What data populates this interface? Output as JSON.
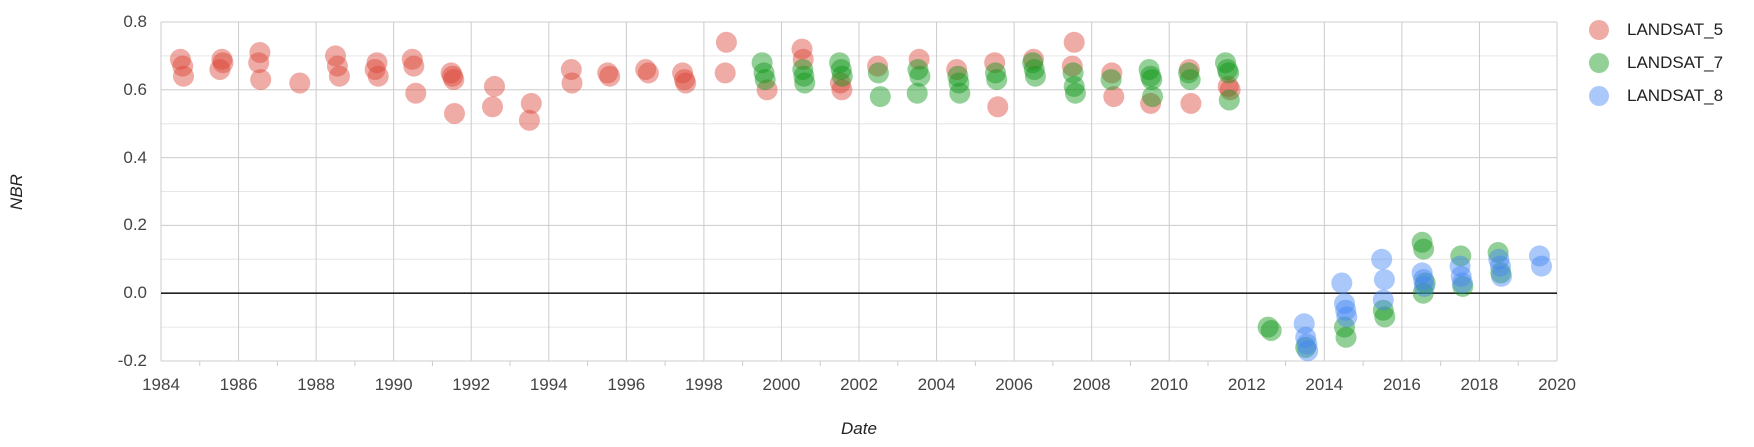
{
  "chart": {
    "background": "#ffffff",
    "grid": {
      "major_color": "#cccccc",
      "minor_color": "#e6e6e6",
      "baseline_color": "#212121",
      "tick_label_color": "#444444",
      "axis_title_color": "#222222"
    },
    "y_axis": {
      "title": "NBR",
      "tick_labels": [
        "0.8",
        "0.6",
        "0.4",
        "0.2",
        "0.0",
        "-0.2"
      ],
      "tick_values": [
        0.8,
        0.6,
        0.4,
        0.2,
        0.0,
        -0.2
      ],
      "minor_gridlines": [
        0.7,
        0.5,
        0.3,
        0.1,
        -0.1
      ]
    },
    "x_axis": {
      "title": "Date",
      "tick_labels": [
        "1984",
        "1986",
        "1988",
        "1990",
        "1992",
        "1994",
        "1996",
        "1998",
        "2000",
        "2002",
        "2004",
        "2006",
        "2008",
        "2010",
        "2012",
        "2014",
        "2016",
        "2018",
        "2020"
      ],
      "tick_values": [
        1984,
        1986,
        1988,
        1990,
        1992,
        1994,
        1996,
        1998,
        2000,
        2002,
        2004,
        2006,
        2008,
        2010,
        2012,
        2014,
        2016,
        2018,
        2020
      ],
      "minor_ticks": [
        1985,
        1987,
        1989,
        1991,
        1993,
        1995,
        1997,
        1999,
        2001,
        2003,
        2005,
        2007,
        2009,
        2011,
        2013,
        2015,
        2017,
        2019
      ]
    }
  },
  "chart_data": {
    "type": "scatter",
    "title": "",
    "xlabel": "Date",
    "ylabel": "NBR",
    "xlim": [
      1984,
      2020
    ],
    "ylim": [
      -0.2,
      0.8
    ],
    "baseline": 0,
    "grid": "on",
    "legend_position": "top-right-outside",
    "point_opacity": 0.45,
    "series": [
      {
        "name": "LANDSAT_5",
        "color": "#db4437",
        "points": [
          [
            1984.5,
            0.69
          ],
          [
            1984.56,
            0.67
          ],
          [
            1984.58,
            0.64
          ],
          [
            1985.52,
            0.66
          ],
          [
            1985.57,
            0.69
          ],
          [
            1985.6,
            0.68
          ],
          [
            1986.52,
            0.68
          ],
          [
            1986.55,
            0.71
          ],
          [
            1986.57,
            0.63
          ],
          [
            1987.58,
            0.62
          ],
          [
            1988.5,
            0.7
          ],
          [
            1988.55,
            0.67
          ],
          [
            1988.6,
            0.64
          ],
          [
            1989.52,
            0.66
          ],
          [
            1989.57,
            0.68
          ],
          [
            1989.6,
            0.64
          ],
          [
            1990.48,
            0.69
          ],
          [
            1990.52,
            0.67
          ],
          [
            1990.57,
            0.59
          ],
          [
            1991.48,
            0.65
          ],
          [
            1991.52,
            0.64
          ],
          [
            1991.55,
            0.63
          ],
          [
            1991.57,
            0.53
          ],
          [
            1992.55,
            0.55
          ],
          [
            1992.6,
            0.61
          ],
          [
            1993.5,
            0.51
          ],
          [
            1993.55,
            0.56
          ],
          [
            1994.58,
            0.66
          ],
          [
            1994.6,
            0.62
          ],
          [
            1995.52,
            0.65
          ],
          [
            1995.57,
            0.64
          ],
          [
            1996.5,
            0.66
          ],
          [
            1996.57,
            0.65
          ],
          [
            1997.45,
            0.65
          ],
          [
            1997.5,
            0.63
          ],
          [
            1997.53,
            0.62
          ],
          [
            1998.55,
            0.65
          ],
          [
            1998.58,
            0.74
          ],
          [
            1999.63,
            0.6
          ],
          [
            2000.53,
            0.72
          ],
          [
            2000.56,
            0.69
          ],
          [
            2001.52,
            0.62
          ],
          [
            2001.56,
            0.6
          ],
          [
            2002.48,
            0.67
          ],
          [
            2003.55,
            0.69
          ],
          [
            2004.52,
            0.66
          ],
          [
            2005.5,
            0.68
          ],
          [
            2005.58,
            0.55
          ],
          [
            2006.5,
            0.69
          ],
          [
            2007.5,
            0.67
          ],
          [
            2007.55,
            0.74
          ],
          [
            2008.52,
            0.65
          ],
          [
            2008.57,
            0.58
          ],
          [
            2009.52,
            0.56
          ],
          [
            2010.52,
            0.66
          ],
          [
            2010.56,
            0.56
          ],
          [
            2011.52,
            0.61
          ],
          [
            2011.57,
            0.6
          ]
        ]
      },
      {
        "name": "LANDSAT_7",
        "color": "#109618",
        "points": [
          [
            1999.5,
            0.68
          ],
          [
            1999.55,
            0.65
          ],
          [
            1999.58,
            0.63
          ],
          [
            2000.55,
            0.66
          ],
          [
            2000.58,
            0.64
          ],
          [
            2000.6,
            0.62
          ],
          [
            2001.5,
            0.68
          ],
          [
            2001.54,
            0.66
          ],
          [
            2001.57,
            0.64
          ],
          [
            2002.5,
            0.65
          ],
          [
            2002.55,
            0.58
          ],
          [
            2003.5,
            0.59
          ],
          [
            2003.52,
            0.66
          ],
          [
            2003.57,
            0.64
          ],
          [
            2004.55,
            0.64
          ],
          [
            2004.58,
            0.62
          ],
          [
            2004.6,
            0.59
          ],
          [
            2005.52,
            0.65
          ],
          [
            2005.55,
            0.63
          ],
          [
            2006.48,
            0.68
          ],
          [
            2006.52,
            0.66
          ],
          [
            2006.55,
            0.64
          ],
          [
            2007.52,
            0.65
          ],
          [
            2007.55,
            0.61
          ],
          [
            2007.58,
            0.59
          ],
          [
            2008.5,
            0.63
          ],
          [
            2009.48,
            0.66
          ],
          [
            2009.52,
            0.64
          ],
          [
            2009.55,
            0.63
          ],
          [
            2009.57,
            0.58
          ],
          [
            2010.5,
            0.65
          ],
          [
            2010.54,
            0.63
          ],
          [
            2011.45,
            0.68
          ],
          [
            2011.5,
            0.66
          ],
          [
            2011.53,
            0.65
          ],
          [
            2011.55,
            0.57
          ],
          [
            2012.55,
            -0.1
          ],
          [
            2012.63,
            -0.11
          ],
          [
            2013.52,
            -0.16
          ],
          [
            2014.52,
            -0.1
          ],
          [
            2014.56,
            -0.13
          ],
          [
            2015.52,
            -0.05
          ],
          [
            2015.56,
            -0.07
          ],
          [
            2016.52,
            0.15
          ],
          [
            2016.56,
            0.13
          ],
          [
            2016.55,
            0.0
          ],
          [
            2016.6,
            0.03
          ],
          [
            2017.52,
            0.11
          ],
          [
            2017.57,
            0.02
          ],
          [
            2018.48,
            0.12
          ],
          [
            2018.55,
            0.06
          ]
        ]
      },
      {
        "name": "LANDSAT_8",
        "color": "#4285f4",
        "points": [
          [
            2013.48,
            -0.09
          ],
          [
            2013.52,
            -0.13
          ],
          [
            2013.55,
            -0.15
          ],
          [
            2013.57,
            -0.17
          ],
          [
            2014.45,
            0.03
          ],
          [
            2014.52,
            -0.03
          ],
          [
            2014.55,
            -0.05
          ],
          [
            2014.58,
            -0.07
          ],
          [
            2015.48,
            0.1
          ],
          [
            2015.55,
            0.04
          ],
          [
            2015.52,
            -0.02
          ],
          [
            2016.52,
            0.06
          ],
          [
            2016.56,
            0.04
          ],
          [
            2016.58,
            0.02
          ],
          [
            2017.5,
            0.08
          ],
          [
            2017.53,
            0.05
          ],
          [
            2017.56,
            0.03
          ],
          [
            2018.5,
            0.1
          ],
          [
            2018.54,
            0.08
          ],
          [
            2018.57,
            0.05
          ],
          [
            2019.55,
            0.11
          ],
          [
            2019.6,
            0.08
          ]
        ]
      }
    ]
  }
}
